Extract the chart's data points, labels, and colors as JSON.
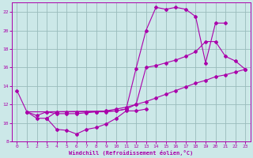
{
  "xlabel": "Windchill (Refroidissement éolien,°C)",
  "bg_color": "#cce8e8",
  "grid_color": "#99bbbb",
  "line_color": "#aa00aa",
  "line1_x": [
    0,
    1,
    2,
    3,
    4,
    5,
    6,
    7,
    8,
    9,
    10,
    11,
    12,
    13,
    14,
    15,
    16,
    17,
    18,
    19,
    20,
    21
  ],
  "line1_y": [
    13.5,
    11.2,
    10.5,
    10.5,
    11.2,
    11.2,
    11.2,
    11.2,
    11.2,
    11.2,
    11.3,
    11.5,
    15.9,
    20.0,
    22.5,
    22.3,
    22.5,
    22.3,
    21.5,
    16.5,
    20.8,
    20.8
  ],
  "line2_x": [
    3,
    4,
    5,
    6,
    7,
    8,
    9,
    10,
    11,
    12,
    13
  ],
  "line2_y": [
    10.5,
    9.3,
    9.2,
    8.8,
    9.3,
    9.5,
    9.9,
    10.5,
    11.3,
    11.3,
    11.5
  ],
  "line3_x": [
    1,
    3,
    10,
    11,
    12,
    13,
    14,
    15,
    16,
    17,
    18,
    19,
    20,
    21,
    22,
    23
  ],
  "line3_y": [
    11.2,
    11.2,
    11.3,
    11.5,
    12.0,
    16.0,
    16.2,
    16.5,
    16.8,
    17.2,
    17.7,
    18.8,
    18.8,
    17.2,
    16.7,
    15.8
  ],
  "line4_x": [
    1,
    2,
    3,
    4,
    5,
    6,
    7,
    8,
    9,
    10,
    11,
    12,
    13,
    14,
    15,
    16,
    17,
    18,
    19,
    20,
    21,
    22,
    23
  ],
  "line4_y": [
    11.2,
    10.8,
    11.2,
    11.0,
    11.0,
    11.0,
    11.1,
    11.2,
    11.3,
    11.5,
    11.7,
    12.0,
    12.3,
    12.7,
    13.1,
    13.5,
    13.9,
    14.3,
    14.6,
    15.0,
    15.2,
    15.5,
    15.8
  ],
  "xlim": [
    -0.5,
    23.5
  ],
  "ylim": [
    8,
    23
  ],
  "yticks": [
    8,
    10,
    12,
    14,
    16,
    18,
    20,
    22
  ],
  "xticks": [
    0,
    1,
    2,
    3,
    4,
    5,
    6,
    7,
    8,
    9,
    10,
    11,
    12,
    13,
    14,
    15,
    16,
    17,
    18,
    19,
    20,
    21,
    22,
    23
  ],
  "figsize": [
    3.2,
    2.0
  ],
  "dpi": 100
}
